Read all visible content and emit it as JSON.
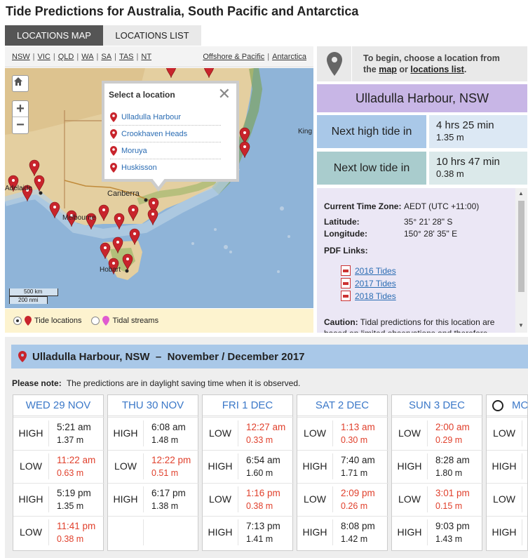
{
  "page_title": "Tide Predictions for Australia, South Pacific and Antarctica",
  "tabs": [
    {
      "label": "LOCATIONS MAP"
    },
    {
      "label": "LOCATIONS LIST"
    }
  ],
  "regions": [
    "NSW",
    "VIC",
    "QLD",
    "WA",
    "SA",
    "TAS",
    "NT"
  ],
  "regions_right": [
    "Offshore & Pacific",
    "Antarctica"
  ],
  "map": {
    "labels": {
      "canberra": "Canberra",
      "melbourne": "Melbourne",
      "hobart": "Hobart",
      "adelaide": "Adelaide",
      "king": "King"
    },
    "scale_km": "500 km",
    "scale_nmi": "200 nmi",
    "popup": {
      "title": "Select a location",
      "items": [
        "Ulladulla Harbour",
        "Crookhaven Heads",
        "Moruya",
        "Huskisson"
      ]
    },
    "legend": {
      "tide": "Tide locations",
      "streams": "Tidal streams"
    }
  },
  "prompt": {
    "line1": "To begin, choose a location from",
    "the": "the",
    "map_link": "map",
    "or": "or",
    "list_link": "locations list",
    "end": "."
  },
  "location": {
    "title": "Ulladulla Harbour, NSW"
  },
  "next_high": {
    "label": "Next high tide in",
    "time": "4 hrs 25 min",
    "height": "1.35 m"
  },
  "next_low": {
    "label": "Next low tide in",
    "time": "10 hrs 47 min",
    "height": "0.38 m"
  },
  "details": {
    "tz_label": "Current Time Zone:",
    "tz_value": "AEDT (UTC +11:00)",
    "lat_label": "Latitude:",
    "lat_value": "35° 21' 28\" S",
    "lon_label": "Longitude:",
    "lon_value": "150° 28' 35\" E",
    "pdf_label": "PDF Links:",
    "pdfs": [
      "2016 Tides",
      "2017 Tides",
      "2018 Tides"
    ],
    "caution_label": "Caution:",
    "caution_text": "Tidal predictions for this location are based on limited observations and therefore"
  },
  "month_bar": {
    "location": "Ulladulla Harbour, NSW",
    "dash": "–",
    "period": "November / December 2017"
  },
  "note": {
    "label": "Please note:",
    "text": "The predictions are in daylight saving time when it is observed."
  },
  "days": [
    {
      "name": "WED 29 NOV",
      "tides": [
        {
          "type": "HIGH",
          "time": "5:21 am",
          "height": "1.37 m"
        },
        {
          "type": "LOW",
          "time": "11:22 am",
          "height": "0.63 m"
        },
        {
          "type": "HIGH",
          "time": "5:19 pm",
          "height": "1.35 m"
        },
        {
          "type": "LOW",
          "time": "11:41 pm",
          "height": "0.38 m"
        }
      ]
    },
    {
      "name": "THU 30 NOV",
      "tides": [
        {
          "type": "HIGH",
          "time": "6:08 am",
          "height": "1.48 m"
        },
        {
          "type": "LOW",
          "time": "12:22 pm",
          "height": "0.51 m"
        },
        {
          "type": "HIGH",
          "time": "6:17 pm",
          "height": "1.38 m"
        }
      ]
    },
    {
      "name": "FRI 1 DEC",
      "tides": [
        {
          "type": "LOW",
          "time": "12:27 am",
          "height": "0.33 m"
        },
        {
          "type": "HIGH",
          "time": "6:54 am",
          "height": "1.60 m"
        },
        {
          "type": "LOW",
          "time": "1:16 pm",
          "height": "0.38 m"
        },
        {
          "type": "HIGH",
          "time": "7:13 pm",
          "height": "1.41 m"
        }
      ]
    },
    {
      "name": "SAT 2 DEC",
      "tides": [
        {
          "type": "LOW",
          "time": "1:13 am",
          "height": "0.30 m"
        },
        {
          "type": "HIGH",
          "time": "7:40 am",
          "height": "1.71 m"
        },
        {
          "type": "LOW",
          "time": "2:09 pm",
          "height": "0.26 m"
        },
        {
          "type": "HIGH",
          "time": "8:08 pm",
          "height": "1.42 m"
        }
      ]
    },
    {
      "name": "SUN 3 DEC",
      "tides": [
        {
          "type": "LOW",
          "time": "2:00 am",
          "height": "0.29 m"
        },
        {
          "type": "HIGH",
          "time": "8:28 am",
          "height": "1.80 m"
        },
        {
          "type": "LOW",
          "time": "3:01 pm",
          "height": "0.15 m"
        },
        {
          "type": "HIGH",
          "time": "9:03 pm",
          "height": "1.43 m"
        }
      ]
    },
    {
      "name": "MO",
      "tides": [
        {
          "type": "LOW",
          "time": "",
          "height": ""
        },
        {
          "type": "HIGH",
          "time": "",
          "height": ""
        },
        {
          "type": "LOW",
          "time": "",
          "height": ""
        },
        {
          "type": "HIGH",
          "time": "",
          "height": ""
        }
      ]
    }
  ]
}
